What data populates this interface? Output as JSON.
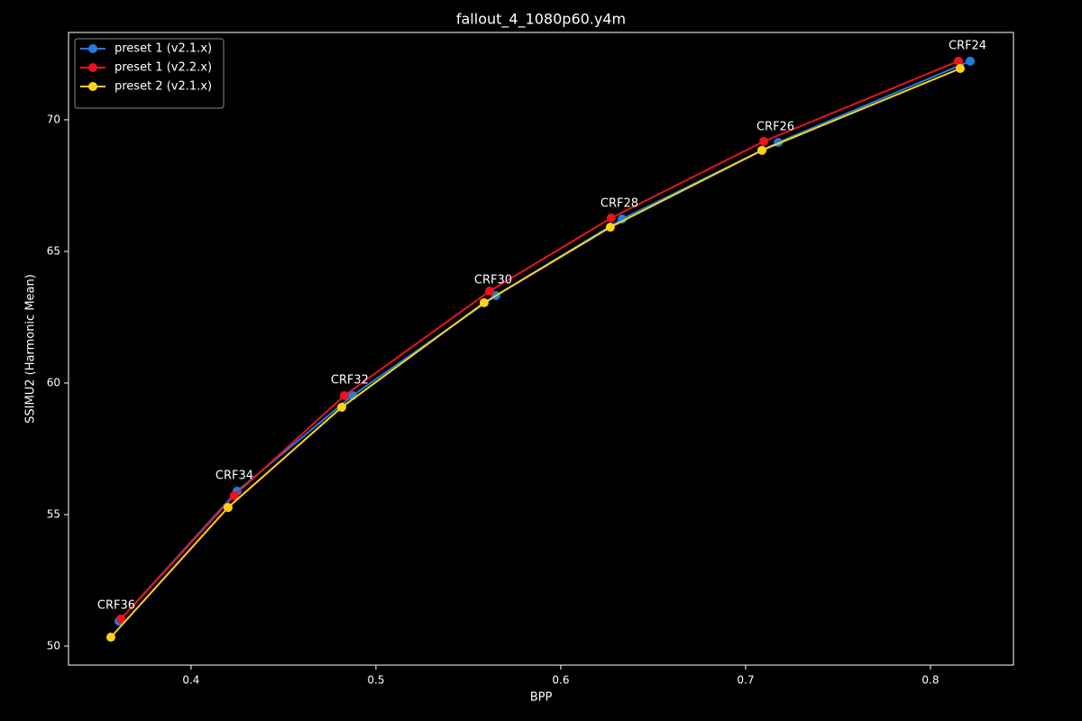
{
  "chart_data": {
    "type": "line",
    "title": "fallout_4_1080p60.y4m",
    "xlabel": "BPP",
    "ylabel": "SSIMU2 (Harmonic Mean)",
    "xlim": [
      0.3337,
      0.8449
    ],
    "ylim": [
      49.28,
      73.32
    ],
    "xticks": [
      0.4,
      0.5,
      0.6,
      0.7,
      0.8
    ],
    "yticks": [
      50,
      55,
      60,
      65,
      70
    ],
    "grid": false,
    "legend": "upper-left",
    "series": [
      {
        "name": "preset 1 (v2.1.x)",
        "color": "#1f7be0",
        "x": [
          0.361,
          0.4249,
          0.4873,
          0.5649,
          0.6332,
          0.7176,
          0.8215
        ],
        "values": [
          50.95,
          55.89,
          59.52,
          63.32,
          66.23,
          69.14,
          72.23
        ],
        "labels": [
          "CRF36",
          "CRF34",
          "CRF32",
          "CRF30",
          "CRF28",
          "CRF26",
          "CRF24"
        ]
      },
      {
        "name": "preset 1 (v2.2.x)",
        "color": "#e8141e",
        "x": [
          0.362,
          0.4234,
          0.4829,
          0.5615,
          0.6273,
          0.7098,
          0.8151
        ],
        "values": [
          51.03,
          55.72,
          59.52,
          63.49,
          66.27,
          69.18,
          72.23
        ]
      },
      {
        "name": "preset 2 (v2.1.x)",
        "color": "#ffd21a",
        "x": [
          0.3566,
          0.42,
          0.4815,
          0.5585,
          0.6268,
          0.7088,
          0.8161
        ],
        "values": [
          50.34,
          55.27,
          59.08,
          63.05,
          65.92,
          68.84,
          71.95
        ]
      }
    ]
  }
}
